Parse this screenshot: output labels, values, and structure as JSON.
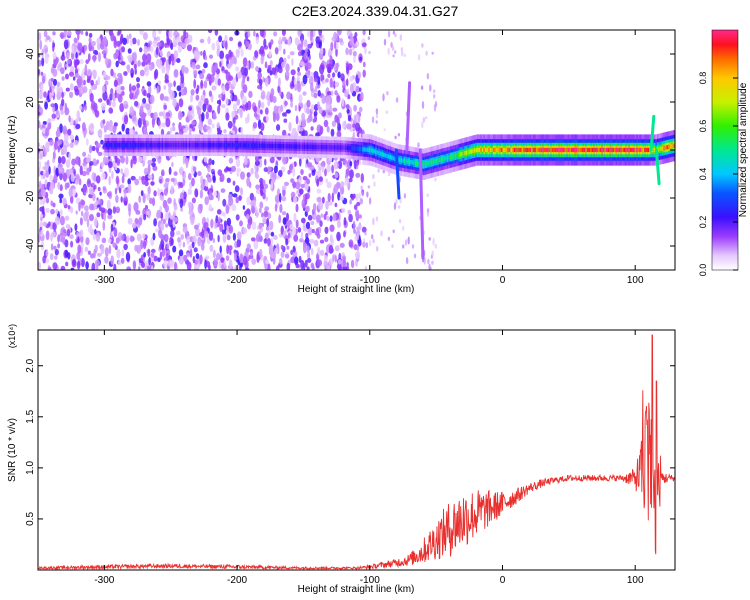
{
  "title": "C2E3.2024.339.04.31.G27",
  "chart_data": [
    {
      "type": "heatmap",
      "xlabel": "Height of straight line (km)",
      "ylabel": "Frequency (Hz)",
      "xlim": [
        -350,
        130
      ],
      "ylim": [
        -50,
        50
      ],
      "x_ticks": [
        -300,
        -200,
        -100,
        0,
        100
      ],
      "y_ticks": [
        -40,
        -20,
        0,
        20,
        40
      ],
      "colorbar": {
        "label": "Normalized spectral amplitude",
        "range": [
          0,
          1
        ],
        "ticks": [
          0.0,
          0.2,
          0.4,
          0.6,
          0.8
        ],
        "tick_labels": [
          "0.0",
          "0.2",
          "0.4",
          "0.6",
          "0.8"
        ]
      },
      "signal_band": {
        "description_points_x": [
          -280,
          -240,
          -200,
          -120,
          -100,
          -80,
          -60,
          -40,
          -20,
          0,
          40,
          80,
          100,
          110,
          115,
          130
        ],
        "center_freq": [
          2,
          2,
          2,
          1,
          0,
          -4,
          -6,
          -3,
          0,
          0,
          0,
          0,
          0,
          0,
          0,
          2
        ],
        "peak_amplitude": [
          0.25,
          0.2,
          0.25,
          0.2,
          0.45,
          0.45,
          0.55,
          0.55,
          0.8,
          0.9,
          1.0,
          1.0,
          1.0,
          0.9,
          0.7,
          1.0
        ]
      },
      "noise_region_x": [
        -350,
        -110
      ]
    },
    {
      "type": "line",
      "xlabel": "Height of straight line (km)",
      "ylabel": "SNR (10 * v/v)",
      "y_multiplier": "(x10⁴)",
      "xlim": [
        -350,
        130
      ],
      "ylim": [
        0,
        2.35
      ],
      "x_ticks": [
        -300,
        -200,
        -100,
        0,
        100
      ],
      "y_ticks": [
        0.5,
        1.0,
        1.5,
        2.0
      ],
      "y_tick_labels": [
        "0.5",
        "1.0",
        "1.5",
        "2.0"
      ],
      "color": "#e8312f",
      "series": [
        {
          "x": [
            -350,
            -300,
            -250,
            -200,
            -150,
            -110,
            -100,
            -90,
            -80,
            -70,
            -60,
            -50,
            -40,
            -30,
            -20,
            -10,
            0,
            10,
            20,
            30,
            40,
            50,
            60,
            70,
            80,
            90,
            100,
            105,
            110,
            115,
            118,
            120,
            125,
            130
          ],
          "y": [
            0.02,
            0.03,
            0.04,
            0.03,
            0.02,
            0.02,
            0.03,
            0.05,
            0.07,
            0.1,
            0.18,
            0.3,
            0.4,
            0.5,
            0.55,
            0.6,
            0.65,
            0.72,
            0.8,
            0.85,
            0.88,
            0.9,
            0.9,
            0.9,
            0.9,
            0.9,
            0.9,
            0.95,
            1.0,
            0.6,
            0.9,
            0.9,
            0.9,
            0.9
          ],
          "noise_amp": [
            0.01,
            0.02,
            0.02,
            0.02,
            0.01,
            0.01,
            0.02,
            0.03,
            0.04,
            0.06,
            0.12,
            0.2,
            0.28,
            0.3,
            0.25,
            0.18,
            0.12,
            0.08,
            0.05,
            0.04,
            0.03,
            0.03,
            0.03,
            0.03,
            0.03,
            0.03,
            0.1,
            0.35,
            0.8,
            0.6,
            0.4,
            0.08,
            0.04,
            0.03
          ],
          "peaks": [
            {
              "x": 113,
              "y": 2.3
            },
            {
              "x": 116,
              "y": 1.85
            },
            {
              "x": 108,
              "y": 1.55
            }
          ]
        }
      ]
    }
  ]
}
